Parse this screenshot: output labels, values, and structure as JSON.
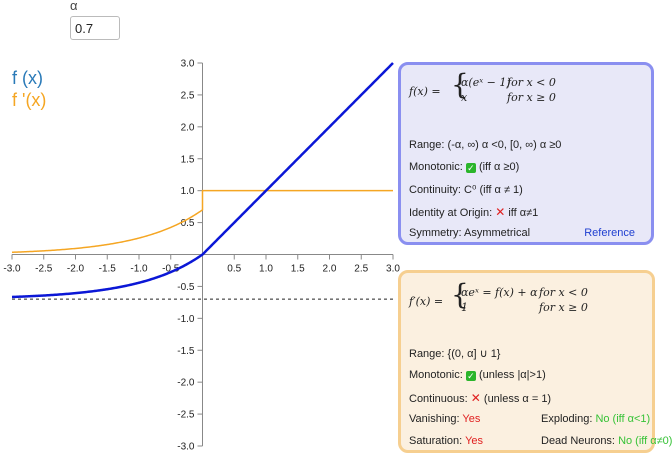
{
  "alpha": {
    "label": "α",
    "value": "0.7"
  },
  "legend": {
    "fx": "f (x)",
    "dfx": "f '(x)",
    "fx_color": "#2a7ab8",
    "dfx_color": "#f5a623"
  },
  "colors": {
    "f_curve": "#0b17d6",
    "df_curve": "#f5a623",
    "asymptote": "#222222"
  },
  "chart_data": {
    "type": "line",
    "xlim": [
      -3.0,
      3.0
    ],
    "ylim": [
      -3.0,
      3.0
    ],
    "x_ticks": [
      "-3.0",
      "-2.5",
      "-2.0",
      "-1.5",
      "-1.0",
      "-0.5",
      "0.5",
      "1.0",
      "1.5",
      "2.0",
      "2.5",
      "3.0"
    ],
    "y_ticks": [
      "3.0",
      "2.5",
      "2.0",
      "1.5",
      "1.0",
      "0.5",
      "-0.5",
      "-1.0",
      "-1.5",
      "-2.0",
      "-2.5",
      "-3.0"
    ],
    "alpha": 0.7,
    "series": [
      {
        "name": "f (x)",
        "formula": "alpha*(exp(x)-1) for x<0; x for x>=0"
      },
      {
        "name": "f '(x)",
        "formula": "alpha*exp(x) for x<0; 1 for x>=0"
      }
    ],
    "asymptote_y": -0.7
  },
  "panel_f": {
    "formula": {
      "lhs": "f(x) =",
      "case1": "α(eˣ − 1)",
      "cond1": "for x < 0",
      "case2": "x",
      "cond2": "for x ≥ 0"
    },
    "range_label": "Range:",
    "range_value": "(-α, ∞) α <0, [0, ∞) α ≥0",
    "monotonic_label": "Monotonic:",
    "monotonic_value": "(iff α ≥0)",
    "continuity_label": "Continuity:",
    "continuity_value": "C⁰ (iff α ≠ 1)",
    "identity_label": "Identity at Origin:",
    "identity_value": "iff α≠1",
    "symmetry_label": "Symmetry:",
    "symmetry_value": "Asymmetrical",
    "reference_link": "Reference"
  },
  "panel_df": {
    "formula": {
      "lhs": "f′(x) =",
      "case1": "αeˣ = f(x) + α",
      "cond1": "for x < 0",
      "case2": "1",
      "cond2": "for x ≥ 0"
    },
    "range_label": "Range:",
    "range_value": "{(0, α] ∪ 1}",
    "monotonic_label": "Monotonic:",
    "monotonic_value": "(unless |α|>1)",
    "continuous_label": "Continuous:",
    "continuous_value": "(unless α = 1)",
    "vanishing_label": "Vanishing:",
    "vanishing_value": "Yes",
    "exploding_label": "Exploding:",
    "exploding_value": "No (iff α<1)",
    "saturation_label": "Saturation:",
    "saturation_value": "Yes",
    "dead_label": "Dead Neurons:",
    "dead_value": "No (iff α≠0)"
  }
}
